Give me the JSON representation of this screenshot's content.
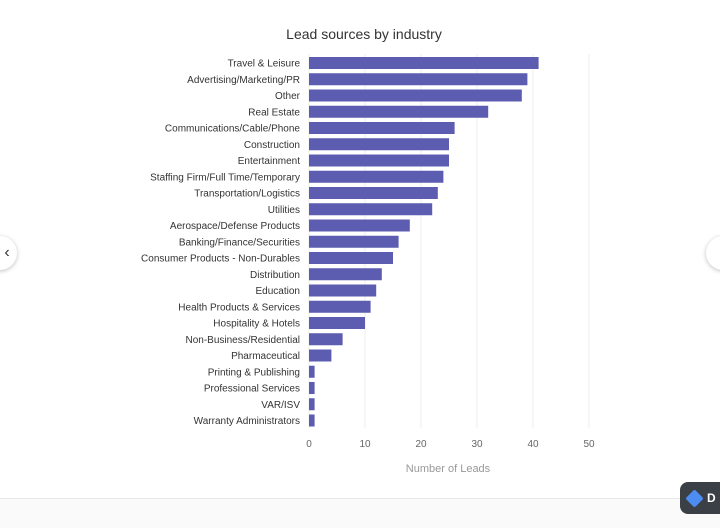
{
  "chart_data": {
    "type": "bar",
    "orientation": "horizontal",
    "title": "Lead sources by industry",
    "xlabel": "Number of Leads",
    "ylabel": "",
    "xlim": [
      0,
      50
    ],
    "xticks": [
      0,
      10,
      20,
      30,
      40,
      50
    ],
    "grid": true,
    "bar_color": "#5c5cb0",
    "categories": [
      "Travel & Leisure",
      "Advertising/Marketing/PR",
      "Other",
      "Real Estate",
      "Communications/Cable/Phone",
      "Construction",
      "Entertainment",
      "Staffing Firm/Full Time/Temporary",
      "Transportation/Logistics",
      "Utilities",
      "Aerospace/Defense Products",
      "Banking/Finance/Securities",
      "Consumer Products - Non-Durables",
      "Distribution",
      "Education",
      "Health Products & Services",
      "Hospitality & Hotels",
      "Non-Business/Residential",
      "Pharmaceutical",
      "Printing & Publishing",
      "Professional Services",
      "VAR/ISV",
      "Warranty Administrators"
    ],
    "values": [
      41,
      39,
      38,
      32,
      26,
      25,
      25,
      24,
      23,
      22,
      18,
      16,
      15,
      13,
      12,
      11,
      10,
      6,
      4,
      1,
      1,
      1,
      1
    ]
  },
  "ui": {
    "nav_prev_icon": "chevron-left-icon",
    "nav_prev_glyph": "‹",
    "nav_next_icon": "chevron-right-icon",
    "badge_text": "D"
  }
}
